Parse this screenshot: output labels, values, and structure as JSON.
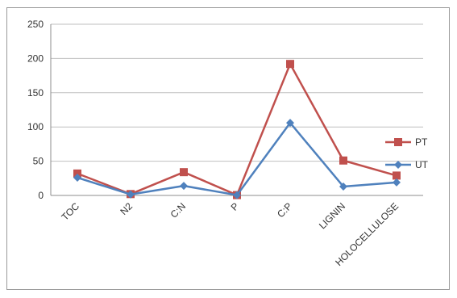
{
  "chart_data": {
    "type": "line",
    "categories": [
      "TOC",
      "N2",
      "C:N",
      "P",
      "C:P",
      "LIGNIN",
      "HOLOCELLULOSE"
    ],
    "series": [
      {
        "name": "PT",
        "values": [
          32,
          2,
          34,
          0.5,
          192,
          51,
          29
        ],
        "color": "#c0504d",
        "marker": "square"
      },
      {
        "name": "UT",
        "values": [
          26,
          1.5,
          14,
          0.5,
          106,
          13,
          19
        ],
        "color": "#4f81bd",
        "marker": "diamond"
      }
    ],
    "y_ticks": [
      "0",
      "50",
      "100",
      "150",
      "200",
      "250"
    ],
    "ylim": [
      0,
      250
    ],
    "grid": true,
    "legend_position": "right",
    "title": "",
    "xlabel": "",
    "ylabel": ""
  }
}
